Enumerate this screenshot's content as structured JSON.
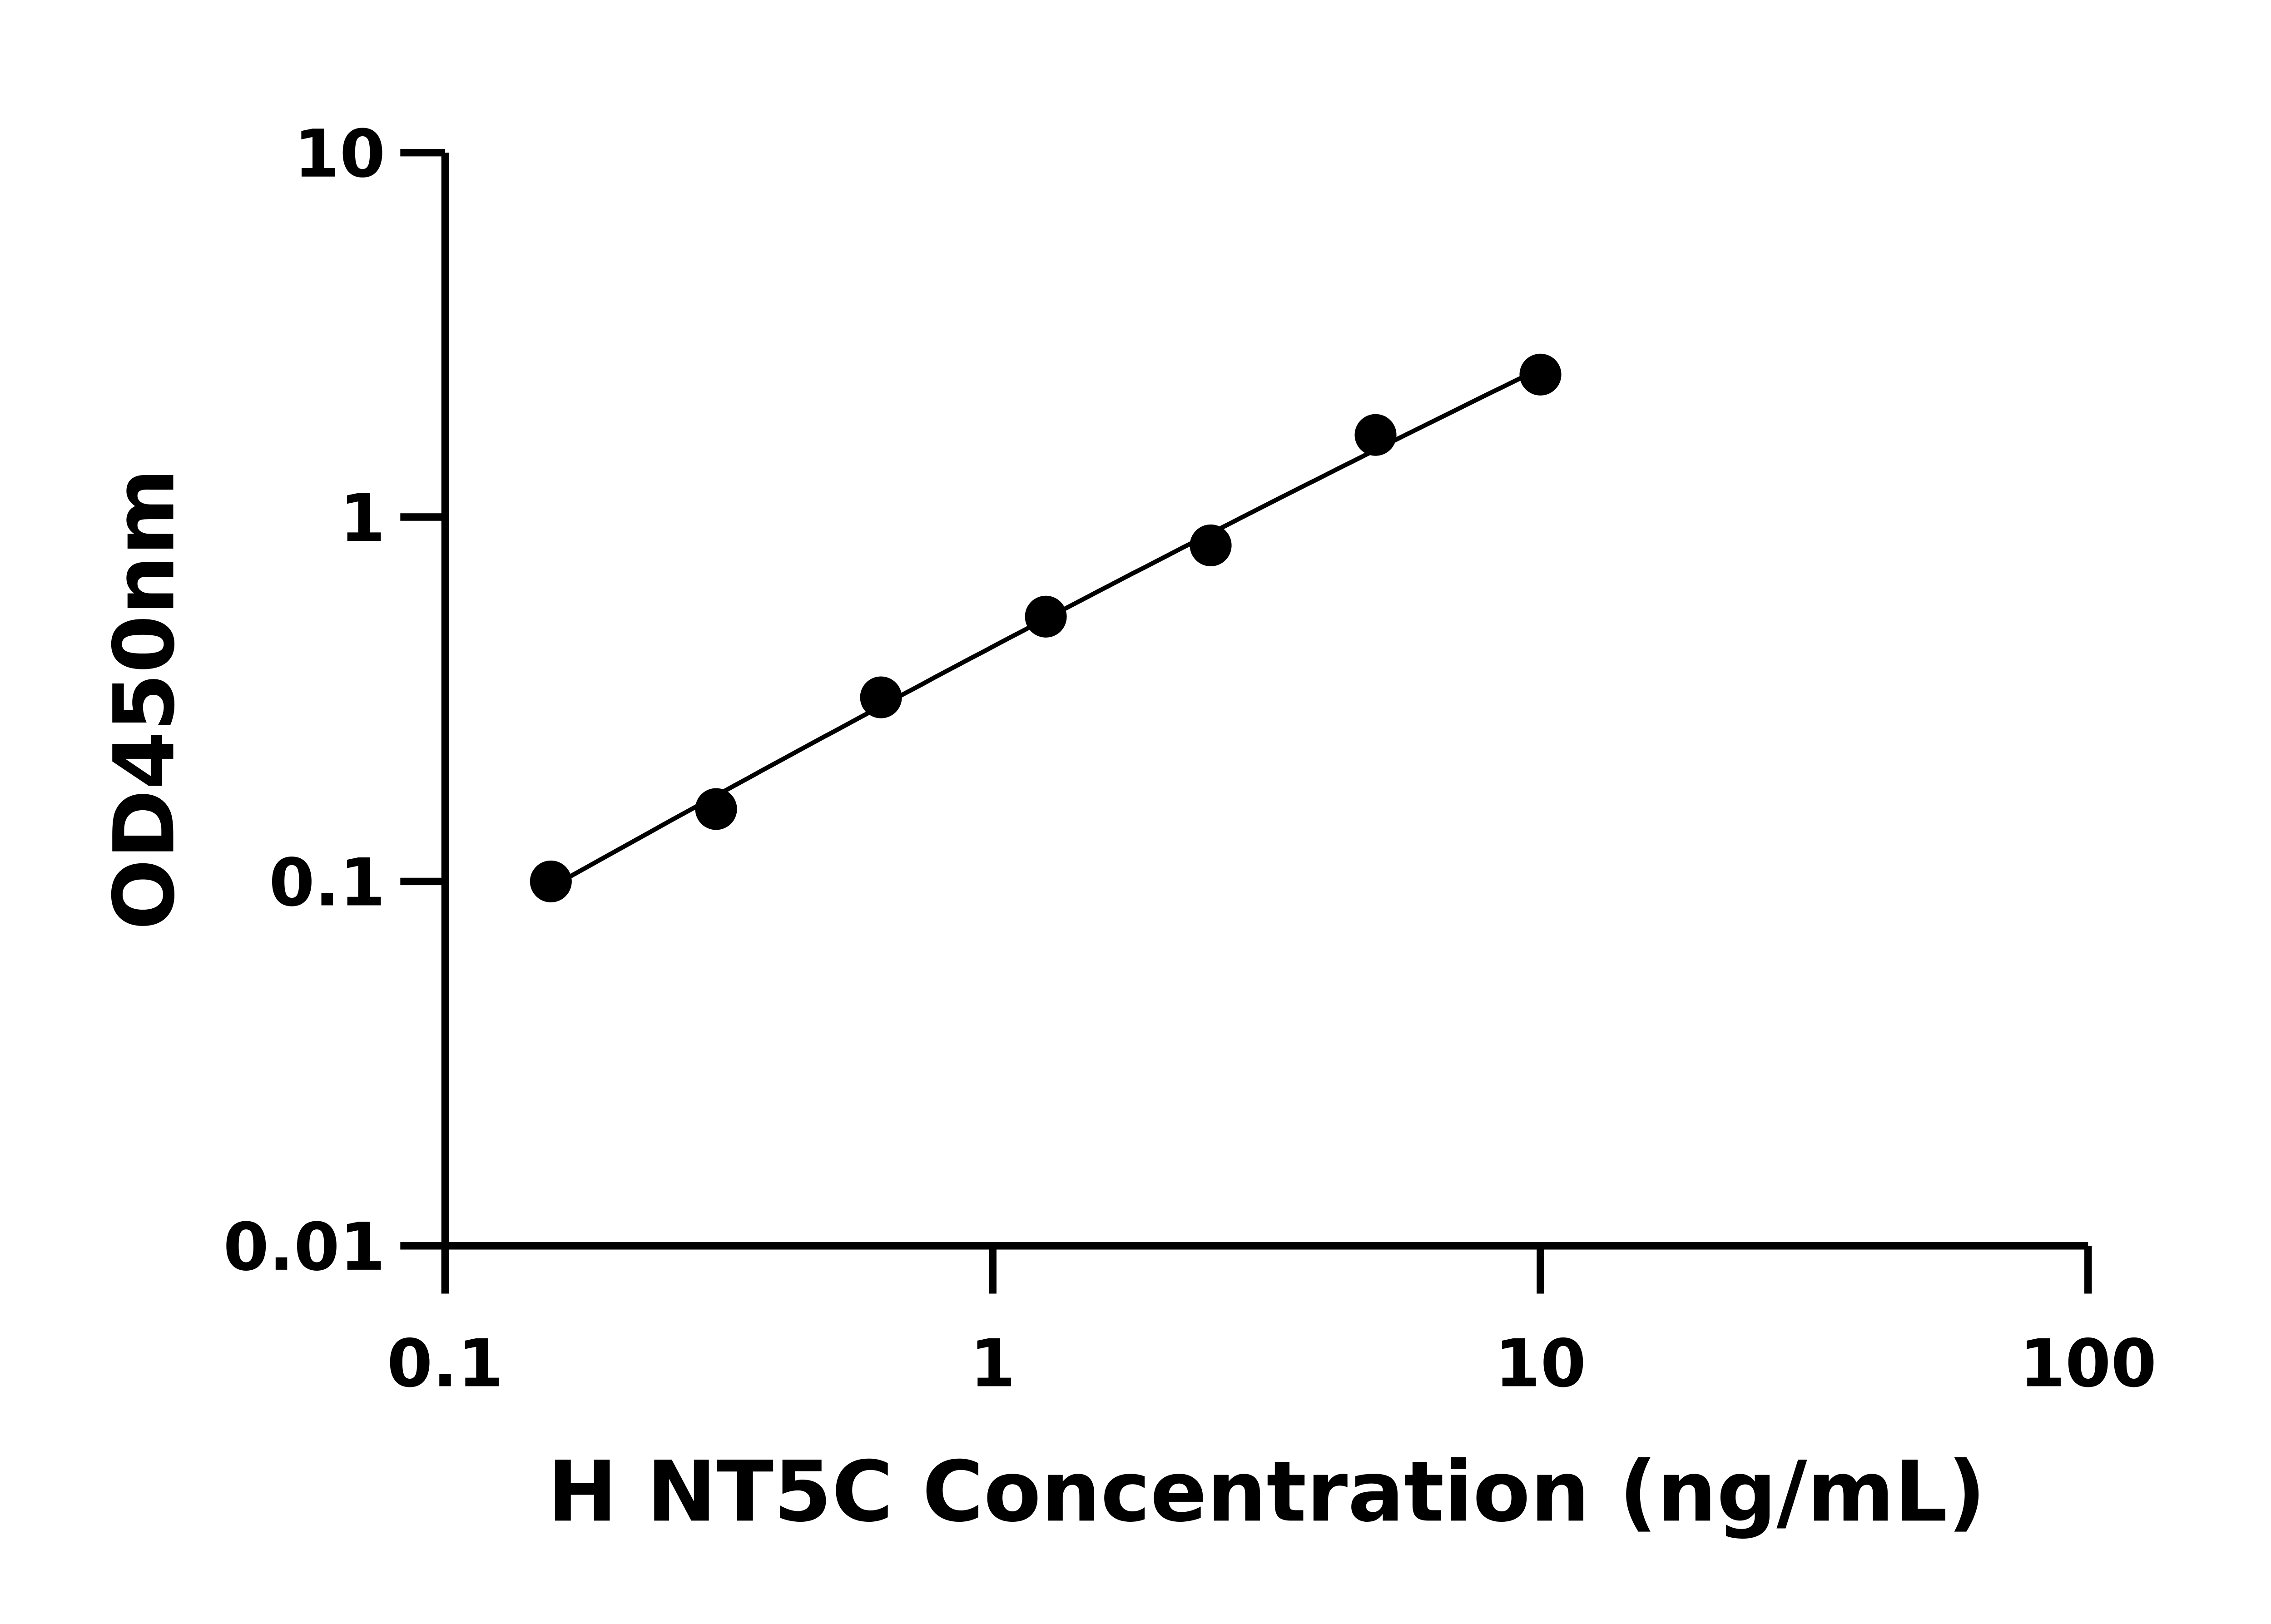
{
  "chart_data": {
    "type": "scatter",
    "title": "",
    "xlabel": "H NT5C Concentration (ng/mL)",
    "ylabel": "OD450nm",
    "x_scale": "log",
    "y_scale": "log",
    "xlim": [
      0.1,
      100
    ],
    "ylim": [
      0.01,
      10
    ],
    "x_ticks": [
      "0.1",
      "1",
      "10",
      "100"
    ],
    "y_ticks": [
      "0.01",
      "0.1",
      "1",
      "10"
    ],
    "grid": false,
    "legend": "none",
    "fit_curve": true,
    "marker_color": "#000000",
    "line_color": "#000000",
    "series": [
      {
        "x": [
          0.156,
          0.3125,
          0.625,
          1.25,
          2.5,
          5,
          10
        ],
        "y": [
          0.1,
          0.158,
          0.32,
          0.533,
          0.836,
          1.68,
          2.46
        ]
      }
    ]
  }
}
